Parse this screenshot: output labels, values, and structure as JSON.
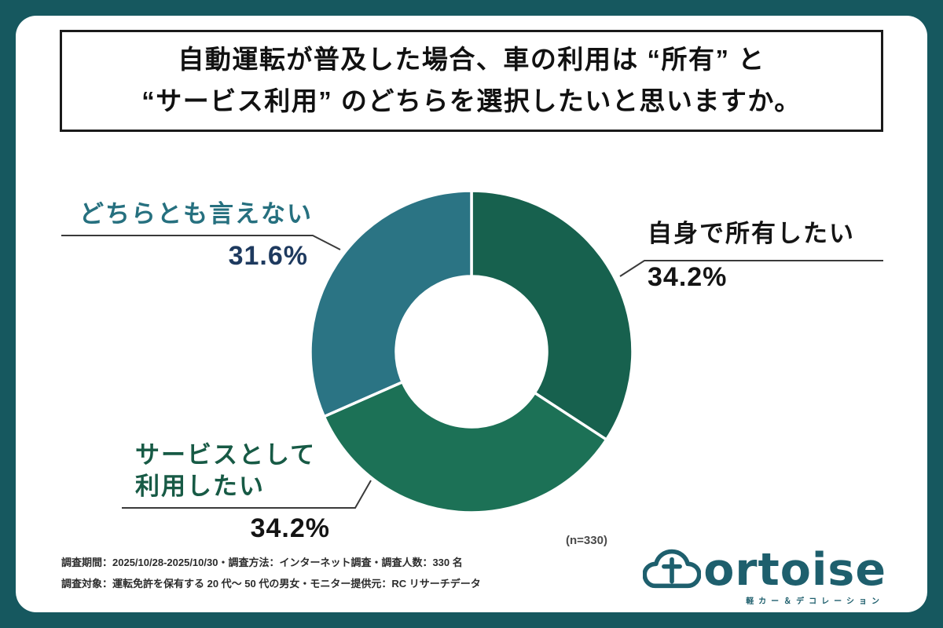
{
  "title": {
    "line1": "自動運転が普及した場合、車の利用は “所有” と",
    "line2": "“サービス利用” のどちらを選択したいと思いますか。"
  },
  "chart_data": {
    "type": "pie",
    "subtype": "donut",
    "title": "自動運転が普及した場合、車の利用は “所有” と “サービス利用” のどちらを選択したいと思いますか。",
    "sample_label": "(n=330)",
    "sample_size": 330,
    "start_angle_deg": 0,
    "direction": "clockwise",
    "hole_ratio": 0.46,
    "legend_position": "callout-labels",
    "segments": [
      {
        "label": "自身で所有したい",
        "label_lines": [
          "自身で所有したい"
        ],
        "value": 34.2,
        "display": "34.2%",
        "color": "#17614e",
        "label_color": "#141414",
        "pct_color": "#141414"
      },
      {
        "label": "サービスとして利用したい",
        "label_lines": [
          "サービスとして",
          "利用したい"
        ],
        "value": 34.2,
        "display": "34.2%",
        "color": "#1c7156",
        "label_color": "#175a45",
        "pct_color": "#141414"
      },
      {
        "label": "どちらとも言えない",
        "label_lines": [
          "どちらとも言えない"
        ],
        "value": 31.6,
        "display": "31.6%",
        "color": "#2b7484",
        "label_color": "#26707f",
        "pct_color": "#1e3a5f"
      }
    ]
  },
  "footer": {
    "line1": "調査期間：2025/10/28-2025/10/30・調査方法：インターネット調査・調査人数：330 名",
    "line2": "調査対象：運転免許を保有する 20 代〜 50 代の男女・モニター提供元：RC リサーチデータ"
  },
  "logo": {
    "wordmark": "ortoise",
    "tagline": "軽カー＆デコレーション",
    "color": "#1e5f6d"
  },
  "colors": {
    "frame": "#16585f",
    "card": "#ffffff",
    "title_border": "#1a1a1a",
    "leader_line": "#3a3a3a"
  }
}
